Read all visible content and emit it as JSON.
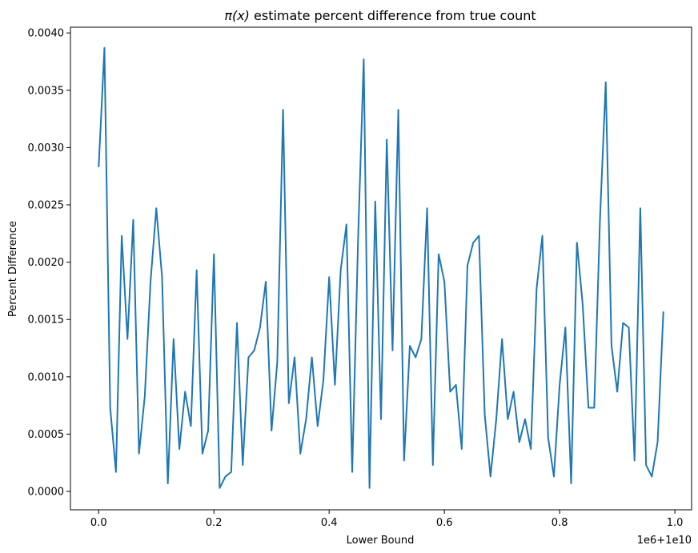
{
  "chart_data": {
    "type": "line",
    "title": "π(x) estimate percent difference from true count",
    "title_math": "π(x)",
    "title_rest": " estimate percent difference from true count",
    "xlabel": "Lower Bound",
    "ylabel": "Percent Difference",
    "x_offset_label": "1e6+1e10",
    "xlim": [
      -0.049,
      1.029
    ],
    "ylim": [
      -0.00016,
      0.00405
    ],
    "xticks": [
      0.0,
      0.2,
      0.4,
      0.6,
      0.8,
      1.0
    ],
    "xtick_labels": [
      "0.0",
      "0.2",
      "0.4",
      "0.6",
      "0.8",
      "1.0"
    ],
    "yticks": [
      0.0,
      0.0005,
      0.001,
      0.0015,
      0.002,
      0.0025,
      0.003,
      0.0035,
      0.004
    ],
    "ytick_labels": [
      "0.0000",
      "0.0005",
      "0.0010",
      "0.0015",
      "0.0020",
      "0.0025",
      "0.0030",
      "0.0035",
      "0.0040"
    ],
    "grid": false,
    "line_color": "#1f77b4",
    "series": [
      {
        "x_start": 0.0,
        "x_step": 0.01,
        "values": [
          0.00283,
          0.00387,
          0.00073,
          0.00017,
          0.00223,
          0.00133,
          0.00237,
          0.00033,
          0.00083,
          0.00183,
          0.00247,
          0.00187,
          7e-05,
          0.00133,
          0.00037,
          0.00087,
          0.00057,
          0.00193,
          0.00033,
          0.00053,
          0.00207,
          3e-05,
          0.00013,
          0.00017,
          0.00147,
          0.00023,
          0.00117,
          0.00123,
          0.00143,
          0.00183,
          0.00053,
          0.00113,
          0.00333,
          0.00077,
          0.00117,
          0.00033,
          0.00063,
          0.00117,
          0.00057,
          0.00097,
          0.00187,
          0.00093,
          0.00193,
          0.00233,
          0.00017,
          0.00217,
          0.00377,
          3e-05,
          0.00253,
          0.00063,
          0.00307,
          0.00123,
          0.00333,
          0.00027,
          0.00127,
          0.00117,
          0.00133,
          0.00247,
          0.00023,
          0.00207,
          0.00183,
          0.00087,
          0.00093,
          0.00037,
          0.00197,
          0.00217,
          0.00223,
          0.00067,
          0.00013,
          0.00063,
          0.00133,
          0.00063,
          0.00087,
          0.00043,
          0.00063,
          0.00037,
          0.00177,
          0.00223,
          0.00047,
          0.00013,
          0.00093,
          0.00143,
          7e-05,
          0.00217,
          0.00163,
          0.00073,
          0.00073,
          0.00237,
          0.00357,
          0.00127,
          0.00087,
          0.00147,
          0.00143,
          0.00027,
          0.00247,
          0.00023,
          0.00013,
          0.00043,
          0.00157
        ]
      }
    ]
  }
}
